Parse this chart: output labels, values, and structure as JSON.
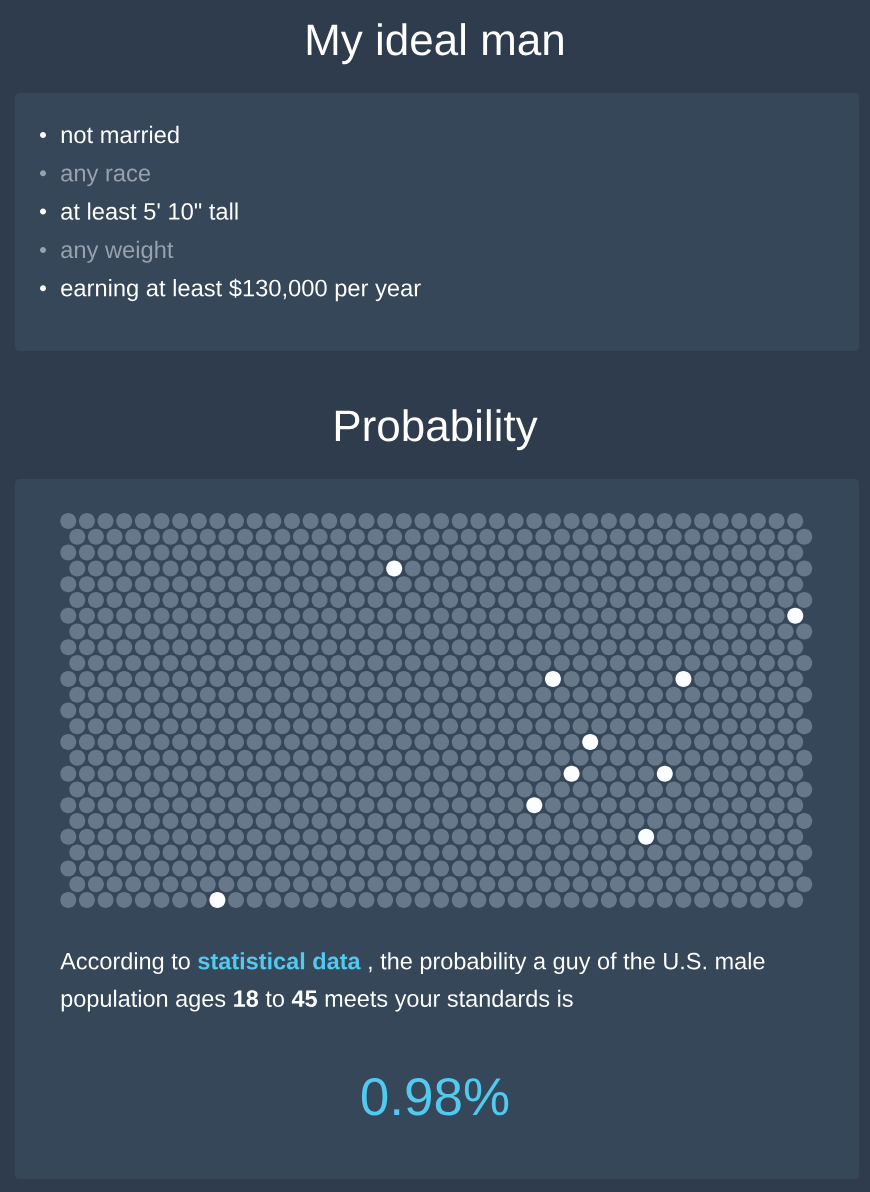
{
  "chart_data": [
    {
      "type": "other",
      "title": "My ideal man",
      "categories": [
        "not married",
        "any race",
        "at least 5' 10\" tall",
        "any weight",
        "earning at least $130,000 per year"
      ],
      "colors": [
        "#ffffff",
        "#98a2ad",
        "#ffffff",
        "#98a2ad",
        "#ffffff"
      ]
    },
    {
      "type": "other",
      "title": "Probability",
      "annotations": [
        "According to",
        "statistical data",
        ", the probability a guy of the U.S. male population ages **18** to **45** meets your standards is"
      ],
      "values": [
        0.98
      ],
      "value_labels": [
        "0.98%"
      ]
    }
  ]
}
